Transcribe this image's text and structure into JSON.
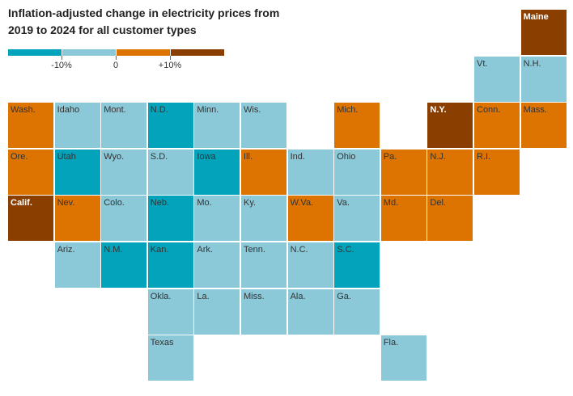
{
  "chart_data": {
    "type": "heatmap",
    "title": "Inflation-adjusted change in electricity prices from 2019 to 2024 for all customer types",
    "legend": {
      "placement": "top-left",
      "bins": [
        {
          "id": "lt-10",
          "color": "#03a3bb"
        },
        {
          "id": "-10to0",
          "color": "#8bc8d8"
        },
        {
          "id": "0to10",
          "color": "#dd7300"
        },
        {
          "id": "gt10",
          "color": "#8a3f00"
        }
      ],
      "tick_labels": [
        "-10%",
        "0",
        "+10%"
      ]
    },
    "states": [
      {
        "name": "Maine",
        "bin": "gt10",
        "row": 0,
        "col": 11
      },
      {
        "name": "Vt.",
        "bin": "-10to0",
        "row": 1,
        "col": 10
      },
      {
        "name": "N.H.",
        "bin": "-10to0",
        "row": 1,
        "col": 11
      },
      {
        "name": "Wash.",
        "bin": "0to10",
        "row": 2,
        "col": 0
      },
      {
        "name": "Idaho",
        "bin": "-10to0",
        "row": 2,
        "col": 1
      },
      {
        "name": "Mont.",
        "bin": "-10to0",
        "row": 2,
        "col": 2
      },
      {
        "name": "N.D.",
        "bin": "lt-10",
        "row": 2,
        "col": 3
      },
      {
        "name": "Minn.",
        "bin": "-10to0",
        "row": 2,
        "col": 4
      },
      {
        "name": "Wis.",
        "bin": "-10to0",
        "row": 2,
        "col": 5
      },
      {
        "name": "Mich.",
        "bin": "0to10",
        "row": 2,
        "col": 7
      },
      {
        "name": "N.Y.",
        "bin": "gt10",
        "row": 2,
        "col": 9
      },
      {
        "name": "Conn.",
        "bin": "0to10",
        "row": 2,
        "col": 10
      },
      {
        "name": "Mass.",
        "bin": "0to10",
        "row": 2,
        "col": 11
      },
      {
        "name": "Ore.",
        "bin": "0to10",
        "row": 3,
        "col": 0
      },
      {
        "name": "Utah",
        "bin": "lt-10",
        "row": 3,
        "col": 1
      },
      {
        "name": "Wyo.",
        "bin": "-10to0",
        "row": 3,
        "col": 2
      },
      {
        "name": "S.D.",
        "bin": "-10to0",
        "row": 3,
        "col": 3
      },
      {
        "name": "Iowa",
        "bin": "lt-10",
        "row": 3,
        "col": 4
      },
      {
        "name": "Ill.",
        "bin": "0to10",
        "row": 3,
        "col": 5
      },
      {
        "name": "Ind.",
        "bin": "-10to0",
        "row": 3,
        "col": 6
      },
      {
        "name": "Ohio",
        "bin": "-10to0",
        "row": 3,
        "col": 7
      },
      {
        "name": "Pa.",
        "bin": "0to10",
        "row": 3,
        "col": 8
      },
      {
        "name": "N.J.",
        "bin": "0to10",
        "row": 3,
        "col": 9
      },
      {
        "name": "R.I.",
        "bin": "0to10",
        "row": 3,
        "col": 10
      },
      {
        "name": "Calif.",
        "bin": "gt10",
        "row": 4,
        "col": 0
      },
      {
        "name": "Nev.",
        "bin": "0to10",
        "row": 4,
        "col": 1
      },
      {
        "name": "Colo.",
        "bin": "-10to0",
        "row": 4,
        "col": 2
      },
      {
        "name": "Neb.",
        "bin": "lt-10",
        "row": 4,
        "col": 3
      },
      {
        "name": "Mo.",
        "bin": "-10to0",
        "row": 4,
        "col": 4
      },
      {
        "name": "Ky.",
        "bin": "-10to0",
        "row": 4,
        "col": 5
      },
      {
        "name": "W.Va.",
        "bin": "0to10",
        "row": 4,
        "col": 6
      },
      {
        "name": "Va.",
        "bin": "-10to0",
        "row": 4,
        "col": 7
      },
      {
        "name": "Md.",
        "bin": "0to10",
        "row": 4,
        "col": 8
      },
      {
        "name": "Del.",
        "bin": "0to10",
        "row": 4,
        "col": 9
      },
      {
        "name": "Ariz.",
        "bin": "-10to0",
        "row": 5,
        "col": 1
      },
      {
        "name": "N.M.",
        "bin": "lt-10",
        "row": 5,
        "col": 2
      },
      {
        "name": "Kan.",
        "bin": "lt-10",
        "row": 5,
        "col": 3
      },
      {
        "name": "Ark.",
        "bin": "-10to0",
        "row": 5,
        "col": 4
      },
      {
        "name": "Tenn.",
        "bin": "-10to0",
        "row": 5,
        "col": 5
      },
      {
        "name": "N.C.",
        "bin": "-10to0",
        "row": 5,
        "col": 6
      },
      {
        "name": "S.C.",
        "bin": "lt-10",
        "row": 5,
        "col": 7
      },
      {
        "name": "Okla.",
        "bin": "-10to0",
        "row": 6,
        "col": 3
      },
      {
        "name": "La.",
        "bin": "-10to0",
        "row": 6,
        "col": 4
      },
      {
        "name": "Miss.",
        "bin": "-10to0",
        "row": 6,
        "col": 5
      },
      {
        "name": "Ala.",
        "bin": "-10to0",
        "row": 6,
        "col": 6
      },
      {
        "name": "Ga.",
        "bin": "-10to0",
        "row": 6,
        "col": 7
      },
      {
        "name": "Texas",
        "bin": "-10to0",
        "row": 7,
        "col": 3
      },
      {
        "name": "Fla.",
        "bin": "-10to0",
        "row": 7,
        "col": 8
      }
    ]
  }
}
